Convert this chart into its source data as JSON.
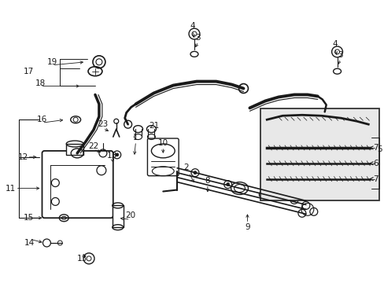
{
  "bg_color": "#ffffff",
  "lc": "#1a1a1a",
  "figsize": [
    4.89,
    3.6
  ],
  "dpi": 100,
  "xlim": [
    0,
    489
  ],
  "ylim": [
    0,
    360
  ]
}
